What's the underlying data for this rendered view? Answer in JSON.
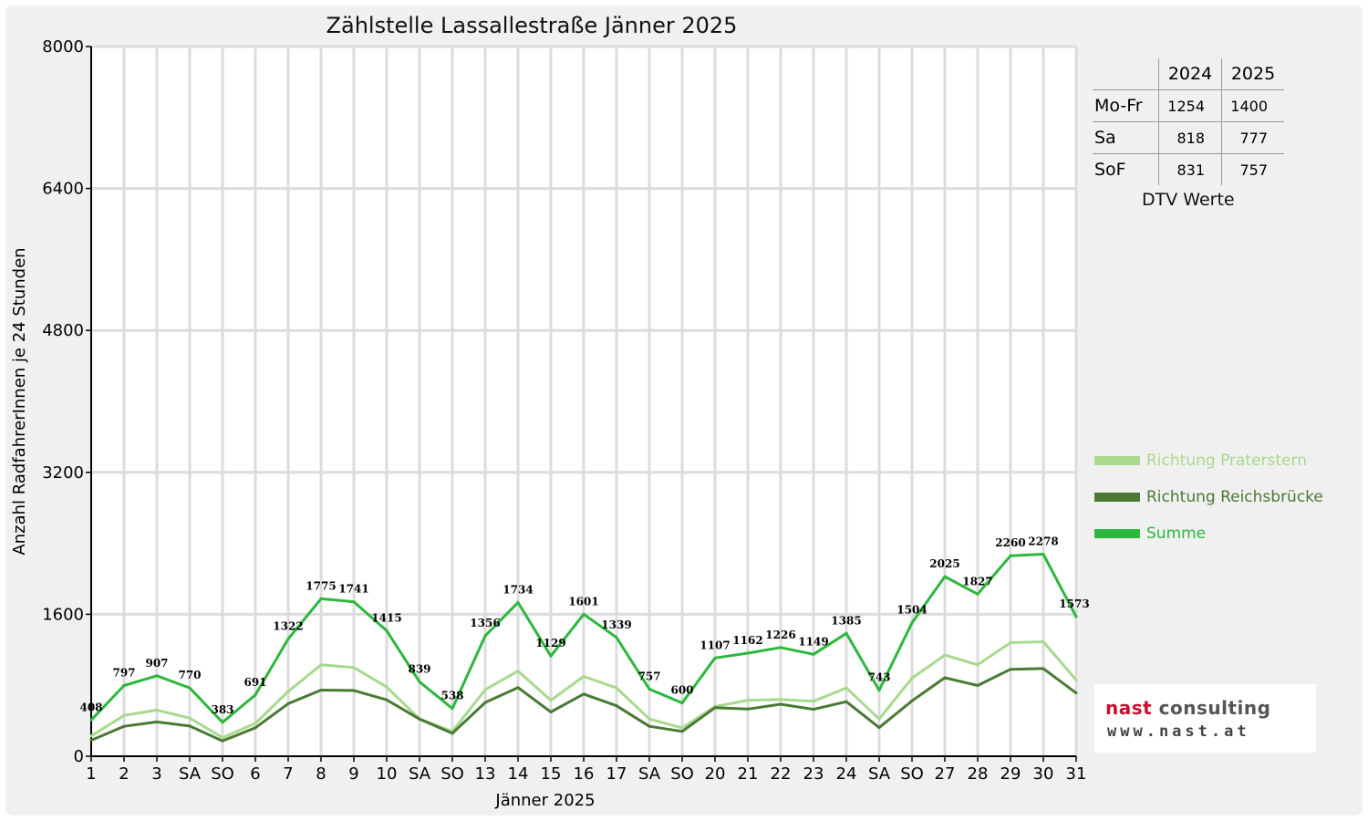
{
  "chart_data": {
    "type": "line",
    "title": "Zählstelle Lassallestraße Jänner 2025",
    "xlabel": "Jänner 2025",
    "ylabel": "Anzahl RadfahrerInnen je 24 Stunden",
    "ylim": [
      0,
      8000
    ],
    "yticks": [
      0,
      1600,
      3200,
      4800,
      6400,
      8000
    ],
    "grid": true,
    "legend_position": "right",
    "x_tick_labels": [
      "1",
      "2",
      "3",
      "SA",
      "SO",
      "6",
      "7",
      "8",
      "9",
      "10",
      "SA",
      "SO",
      "13",
      "14",
      "15",
      "16",
      "17",
      "SA",
      "SO",
      "20",
      "21",
      "22",
      "23",
      "24",
      "SA",
      "SO",
      "27",
      "28",
      "29",
      "30",
      "31"
    ],
    "x_tick_colors": [
      "#000",
      "#000",
      "#000",
      "#000",
      "#e00000",
      "#000",
      "#000",
      "#000",
      "#000",
      "#000",
      "#000",
      "#e00000",
      "#000",
      "#000",
      "#000",
      "#000",
      "#000",
      "#000",
      "#e00000",
      "#000",
      "#000",
      "#000",
      "#000",
      "#000",
      "#000",
      "#e00000",
      "#000",
      "#000",
      "#000",
      "#000",
      "#000"
    ],
    "series": [
      {
        "name": "Richtung Praterstern",
        "color": "#a8d98f",
        "values": [
          228,
          460,
          520,
          430,
          210,
          370,
          730,
          1030,
          1000,
          780,
          420,
          280,
          750,
          960,
          630,
          900,
          770,
          420,
          320,
          560,
          630,
          640,
          620,
          770,
          420,
          880,
          1140,
          1030,
          1280,
          1290,
          860
        ]
      },
      {
        "name": "Richtung Reichsbrücke",
        "color": "#4a7a34",
        "values": [
          180,
          337,
          387,
          340,
          173,
          321,
          592,
          745,
          741,
          635,
          419,
          258,
          606,
          774,
          499,
          701,
          569,
          337,
          280,
          547,
          532,
          586,
          529,
          615,
          323,
          624,
          885,
          797,
          980,
          988,
          713
        ]
      },
      {
        "name": "Summe",
        "color": "#2db83d",
        "values": [
          408,
          797,
          907,
          770,
          383,
          691,
          1322,
          1775,
          1741,
          1415,
          839,
          538,
          1356,
          1734,
          1129,
          1601,
          1339,
          757,
          600,
          1107,
          1162,
          1226,
          1149,
          1385,
          743,
          1504,
          2025,
          1827,
          2260,
          2278,
          1573
        ]
      }
    ]
  },
  "dtv_table": {
    "caption": "DTV Werte",
    "columns": [
      "2024",
      "2025"
    ],
    "rows": [
      {
        "label": "Mo-Fr",
        "v2024": "1254",
        "v2025": "1400"
      },
      {
        "label": "Sa",
        "v2024": "818",
        "v2025": "777"
      },
      {
        "label": "SoF",
        "v2024": "831",
        "v2025": "757"
      }
    ]
  },
  "logo": {
    "name_part1": "nast",
    "name_part2": " consulting",
    "url": "www.nast.at"
  }
}
